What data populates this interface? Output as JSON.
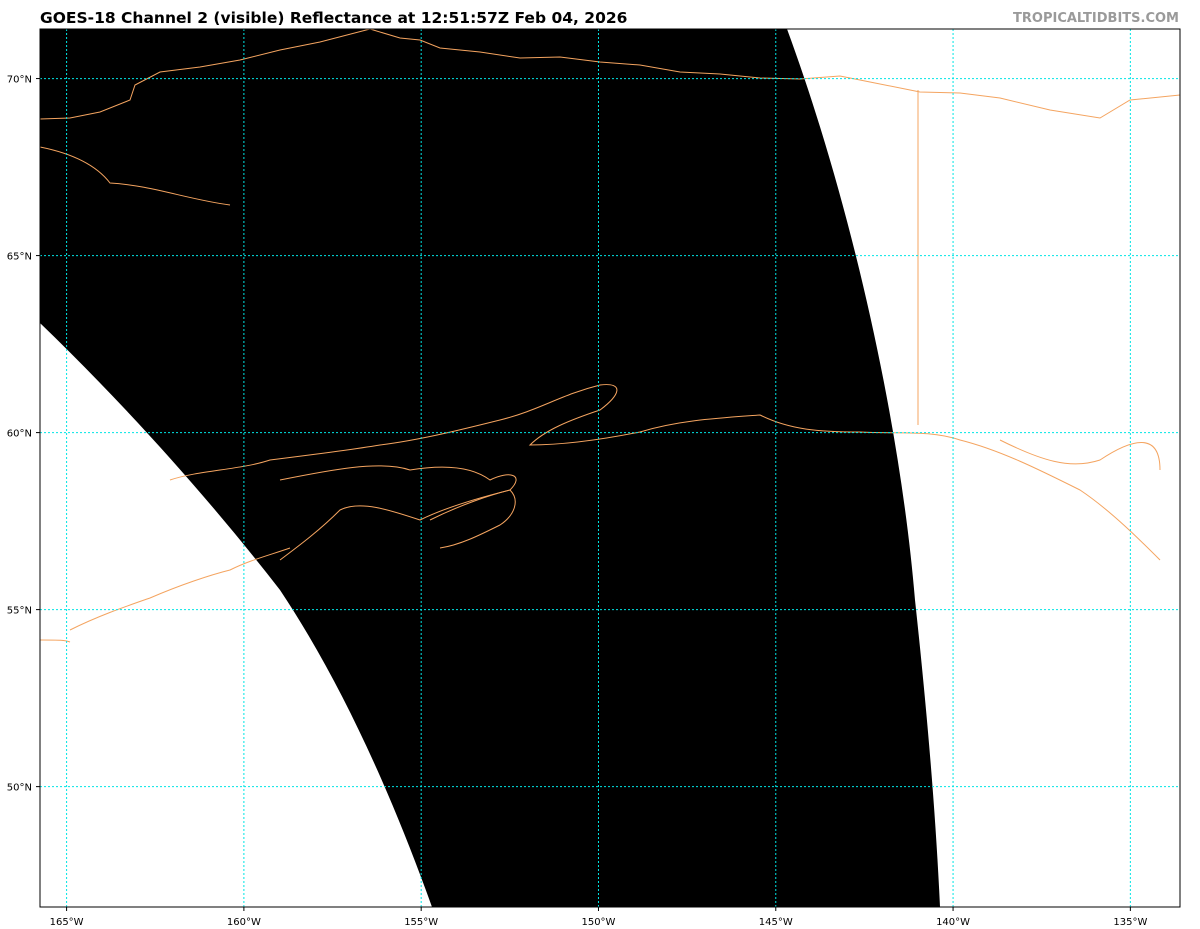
{
  "title": "GOES-18 Channel 2 (visible) Reflectance at 12:51:57Z Feb 04, 2026",
  "credit": "TROPICALTIDBITS.COM",
  "map": {
    "lon_range": [
      -165.75,
      -133.6
    ],
    "lat_range": [
      46.6,
      71.4
    ],
    "lon_ticks": [
      {
        "value": -165,
        "label": "165°W"
      },
      {
        "value": -160,
        "label": "160°W"
      },
      {
        "value": -155,
        "label": "155°W"
      },
      {
        "value": -150,
        "label": "150°W"
      },
      {
        "value": -145,
        "label": "145°W"
      },
      {
        "value": -140,
        "label": "140°W"
      },
      {
        "value": -135,
        "label": "135°W"
      }
    ],
    "lat_ticks": [
      {
        "value": 70,
        "label": "70°N"
      },
      {
        "value": 65,
        "label": "65°N"
      },
      {
        "value": 60,
        "label": "60°N"
      },
      {
        "value": 55,
        "label": "55°N"
      },
      {
        "value": 50,
        "label": "50°N"
      }
    ],
    "colors": {
      "imagery": "#000000",
      "no_data": "#ffffff",
      "coastline": "#f4a460",
      "gridline": "#00e5e5"
    }
  }
}
